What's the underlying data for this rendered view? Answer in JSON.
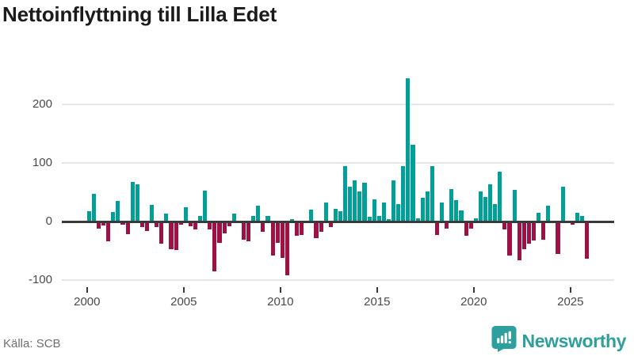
{
  "title": "Nettoinflyttning till Lilla Edet",
  "footer": {
    "source": "Källa: SCB"
  },
  "logo": {
    "text": "Newsworthy",
    "icon": "newsworthy-speech-bubble-barchart-icon"
  },
  "colors": {
    "positive_bar": "#00a099",
    "negative_bar": "#9e1145",
    "zero_line": "#3a3a3a",
    "gridline": "#e7e7e7",
    "axis_text": "#4a4a4a",
    "title_text": "#1b1b1b",
    "source_text": "#6f6f6f",
    "logo": "#2d9f9c"
  },
  "chart_data": {
    "type": "bar",
    "title": "Nettoinflyttning till Lilla Edet",
    "xlabel": "",
    "ylabel": "",
    "frequency": "quarterly",
    "start": "2000Q1",
    "end": "2025Q4",
    "ylim": [
      -110,
      260
    ],
    "grid": true,
    "legend": "none",
    "yticks": [
      200,
      100,
      0,
      -100
    ],
    "ytick_labels": [
      "200",
      "100",
      "0",
      "-100"
    ],
    "xticks": [
      2000,
      2005,
      2010,
      2015,
      2020,
      2025
    ],
    "xtick_labels": [
      "2000",
      "2005",
      "2010",
      "2015",
      "2020",
      "2025"
    ],
    "years": [
      2000,
      2001,
      2002,
      2003,
      2004,
      2005,
      2006,
      2007,
      2008,
      2009,
      2010,
      2011,
      2012,
      2013,
      2014,
      2015,
      2016,
      2017,
      2018,
      2019,
      2020,
      2021,
      2022,
      2023,
      2024,
      2025
    ],
    "values_by_year": {
      "2000": [
        17,
        47,
        -12,
        -7
      ],
      "2001": [
        -34,
        16,
        35,
        -6
      ],
      "2002": [
        -22,
        68,
        64,
        -10
      ],
      "2003": [
        -16,
        28,
        -10,
        -38
      ],
      "2004": [
        14,
        -48,
        -49,
        -5
      ],
      "2005": [
        24,
        -8,
        -14,
        9
      ],
      "2006": [
        53,
        -14,
        -85,
        -37
      ],
      "2007": [
        -21,
        -8,
        13,
        0
      ],
      "2008": [
        -31,
        -34,
        10,
        27
      ],
      "2009": [
        -18,
        10,
        -58,
        -36
      ],
      "2010": [
        -62,
        -92,
        4,
        -25
      ],
      "2011": [
        -23,
        0,
        20,
        -28
      ],
      "2012": [
        -17,
        33,
        -9,
        22
      ],
      "2013": [
        17,
        95,
        60,
        70
      ],
      "2014": [
        52,
        66,
        8,
        38
      ],
      "2015": [
        10,
        32,
        4,
        71
      ],
      "2016": [
        30,
        95,
        245,
        132
      ],
      "2017": [
        6,
        40,
        52,
        95
      ],
      "2018": [
        -23,
        32,
        -12,
        55
      ],
      "2019": [
        37,
        19,
        -24,
        -12
      ],
      "2020": [
        5,
        52,
        42,
        64
      ],
      "2021": [
        30,
        86,
        -13,
        -58
      ],
      "2022": [
        54,
        -66,
        -47,
        -38
      ],
      "2023": [
        -33,
        15,
        -31,
        27
      ],
      "2024": [
        -3,
        -55,
        59,
        0
      ],
      "2025": [
        -6,
        15,
        10,
        -64
      ]
    }
  }
}
